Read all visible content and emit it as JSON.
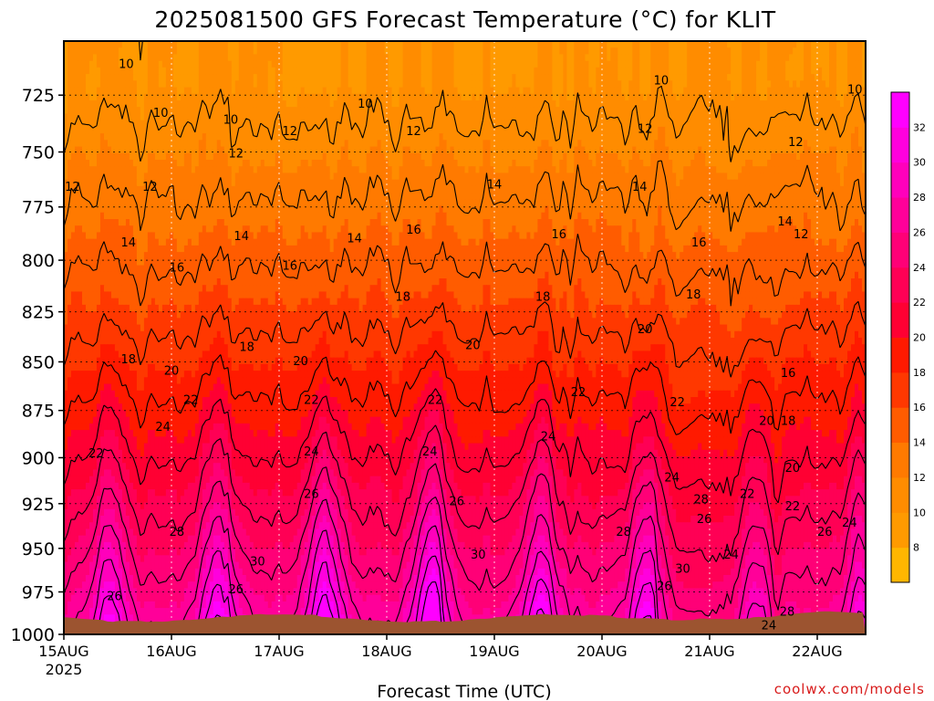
{
  "chart_data": {
    "type": "heatmap",
    "title": "2025081500 GFS Forecast Temperature (°C) for KLIT",
    "xlabel": "Forecast Time (UTC)",
    "ylabel": "",
    "credit": "coolwx.com/models",
    "x_ticks": [
      "15AUG",
      "16AUG",
      "17AUG",
      "18AUG",
      "19AUG",
      "20AUG",
      "21AUG",
      "22AUG"
    ],
    "x_year": "2025",
    "x_range_days": [
      0,
      7.5
    ],
    "y_ticks": [
      "725",
      "750",
      "775",
      "800",
      "825",
      "850",
      "875",
      "900",
      "925",
      "950",
      "975",
      "1000"
    ],
    "y_range_hpa": [
      1000,
      702
    ],
    "y_scale": "log-pressure",
    "grid": true,
    "colorbar": {
      "ticks": [
        "8",
        "10",
        "12",
        "14",
        "16",
        "18",
        "20",
        "22",
        "24",
        "26",
        "28",
        "30",
        "32"
      ],
      "levels": [
        7,
        9,
        11,
        13,
        15,
        17,
        19,
        21,
        23,
        25,
        27,
        29,
        31,
        33
      ],
      "colors": [
        "#FFB600",
        "#FF9A00",
        "#FF8C00",
        "#FF7A00",
        "#FF5C00",
        "#FF3800",
        "#FF1A00",
        "#FF0033",
        "#FF0055",
        "#FF0077",
        "#FF0099",
        "#FF00BB",
        "#FF00DD",
        "#FF00FF"
      ]
    },
    "contour_labels": [
      {
        "text": "10",
        "t": 0.58,
        "p": 712
      },
      {
        "text": "10",
        "t": 0.9,
        "p": 733
      },
      {
        "text": "10",
        "t": 1.55,
        "p": 736
      },
      {
        "text": "10",
        "t": 2.8,
        "p": 729
      },
      {
        "text": "10",
        "t": 5.55,
        "p": 719
      },
      {
        "text": "10",
        "t": 7.35,
        "p": 723
      },
      {
        "text": "12",
        "t": 0.08,
        "p": 766
      },
      {
        "text": "12",
        "t": 0.8,
        "p": 766
      },
      {
        "text": "12",
        "t": 1.6,
        "p": 751
      },
      {
        "text": "12",
        "t": 2.1,
        "p": 741
      },
      {
        "text": "12",
        "t": 3.25,
        "p": 741
      },
      {
        "text": "12",
        "t": 5.4,
        "p": 740
      },
      {
        "text": "12",
        "t": 6.8,
        "p": 746
      },
      {
        "text": "12",
        "t": 6.85,
        "p": 788
      },
      {
        "text": "14",
        "t": 0.6,
        "p": 792
      },
      {
        "text": "14",
        "t": 1.65,
        "p": 789
      },
      {
        "text": "14",
        "t": 2.7,
        "p": 790
      },
      {
        "text": "14",
        "t": 4.0,
        "p": 765
      },
      {
        "text": "14",
        "t": 5.35,
        "p": 766
      },
      {
        "text": "14",
        "t": 6.7,
        "p": 782
      },
      {
        "text": "16",
        "t": 1.05,
        "p": 804
      },
      {
        "text": "16",
        "t": 2.1,
        "p": 803
      },
      {
        "text": "16",
        "t": 3.25,
        "p": 786
      },
      {
        "text": "16",
        "t": 4.6,
        "p": 788
      },
      {
        "text": "16",
        "t": 5.9,
        "p": 792
      },
      {
        "text": "16",
        "t": 6.73,
        "p": 856
      },
      {
        "text": "18",
        "t": 0.6,
        "p": 849
      },
      {
        "text": "18",
        "t": 1.7,
        "p": 843
      },
      {
        "text": "18",
        "t": 3.15,
        "p": 818
      },
      {
        "text": "18",
        "t": 4.45,
        "p": 818
      },
      {
        "text": "18",
        "t": 5.85,
        "p": 817
      },
      {
        "text": "18",
        "t": 6.73,
        "p": 881
      },
      {
        "text": "20",
        "t": 1.0,
        "p": 855
      },
      {
        "text": "20",
        "t": 2.2,
        "p": 850
      },
      {
        "text": "20",
        "t": 3.8,
        "p": 842
      },
      {
        "text": "20",
        "t": 5.4,
        "p": 834
      },
      {
        "text": "20",
        "t": 6.53,
        "p": 881
      },
      {
        "text": "20",
        "t": 6.77,
        "p": 906
      },
      {
        "text": "22",
        "t": 0.3,
        "p": 898
      },
      {
        "text": "22",
        "t": 1.18,
        "p": 870
      },
      {
        "text": "22",
        "t": 2.3,
        "p": 870
      },
      {
        "text": "22",
        "t": 3.45,
        "p": 870
      },
      {
        "text": "22",
        "t": 4.78,
        "p": 866
      },
      {
        "text": "22",
        "t": 5.7,
        "p": 871
      },
      {
        "text": "22",
        "t": 6.35,
        "p": 920
      },
      {
        "text": "22",
        "t": 6.77,
        "p": 927
      },
      {
        "text": "24",
        "t": 0.92,
        "p": 884
      },
      {
        "text": "24",
        "t": 2.3,
        "p": 897
      },
      {
        "text": "24",
        "t": 3.4,
        "p": 897
      },
      {
        "text": "24",
        "t": 4.5,
        "p": 889
      },
      {
        "text": "24",
        "t": 5.65,
        "p": 911
      },
      {
        "text": "24",
        "t": 6.2,
        "p": 954
      },
      {
        "text": "24",
        "t": 6.55,
        "p": 995
      },
      {
        "text": "24",
        "t": 7.3,
        "p": 936
      },
      {
        "text": "26",
        "t": 0.47,
        "p": 978
      },
      {
        "text": "26",
        "t": 1.6,
        "p": 974
      },
      {
        "text": "26",
        "t": 2.3,
        "p": 920
      },
      {
        "text": "26",
        "t": 3.65,
        "p": 924
      },
      {
        "text": "26",
        "t": 5.58,
        "p": 972
      },
      {
        "text": "26",
        "t": 5.95,
        "p": 934
      },
      {
        "text": "26",
        "t": 7.07,
        "p": 941
      },
      {
        "text": "28",
        "t": 1.05,
        "p": 941
      },
      {
        "text": "28",
        "t": 5.2,
        "p": 941
      },
      {
        "text": "28",
        "t": 5.92,
        "p": 923
      },
      {
        "text": "28",
        "t": 6.72,
        "p": 987
      },
      {
        "text": "30",
        "t": 1.8,
        "p": 958
      },
      {
        "text": "30",
        "t": 3.85,
        "p": 954
      },
      {
        "text": "30",
        "t": 5.75,
        "p": 962
      }
    ]
  }
}
